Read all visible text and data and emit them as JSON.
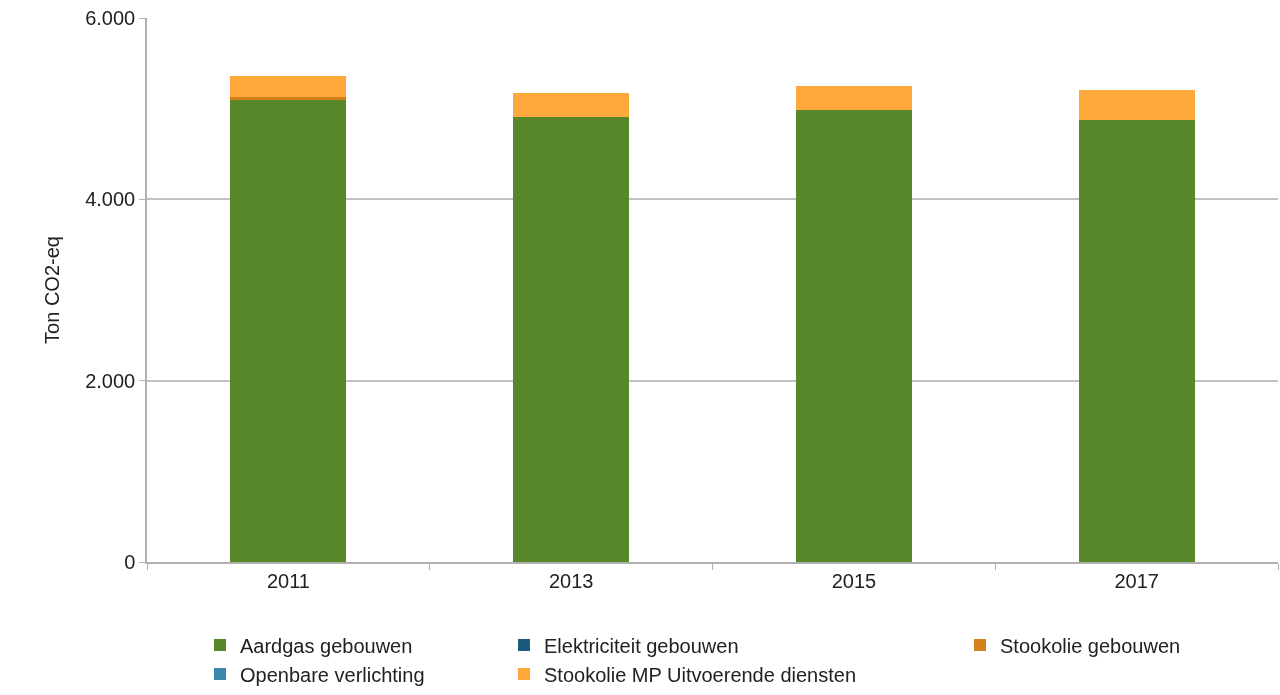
{
  "chart_data": {
    "type": "bar",
    "ylabel": "Ton CO2-eq",
    "categories": [
      "2011",
      "2013",
      "2015",
      "2017"
    ],
    "stacked": true,
    "series": [
      {
        "name": "Aardgas gebouwen",
        "color": "#58872a",
        "values": [
          5100,
          4910,
          4990,
          4870
        ]
      },
      {
        "name": "Elektriciteit gebouwen",
        "color": "#1b5a7a",
        "values": [
          null,
          null,
          null,
          null
        ]
      },
      {
        "name": "Stookolie gebouwen",
        "color": "#d47f1a",
        "values": [
          30,
          null,
          null,
          null
        ]
      },
      {
        "name": "Openbare verlichting",
        "color": "#3b86ab",
        "values": [
          null,
          null,
          null,
          null
        ]
      },
      {
        "name": "Stookolie MP Uitvoerende diensten",
        "color": "#ffa93c",
        "values": [
          230,
          260,
          260,
          340
        ]
      }
    ],
    "ylim": [
      0,
      6000
    ],
    "yticks": [
      0,
      {
        "value": 2000,
        "label": "2.000"
      },
      {
        "value": 4000,
        "label": "4.000"
      },
      {
        "value": 6000,
        "label": "6.000"
      }
    ],
    "grid": "y",
    "legend": "bottom"
  }
}
